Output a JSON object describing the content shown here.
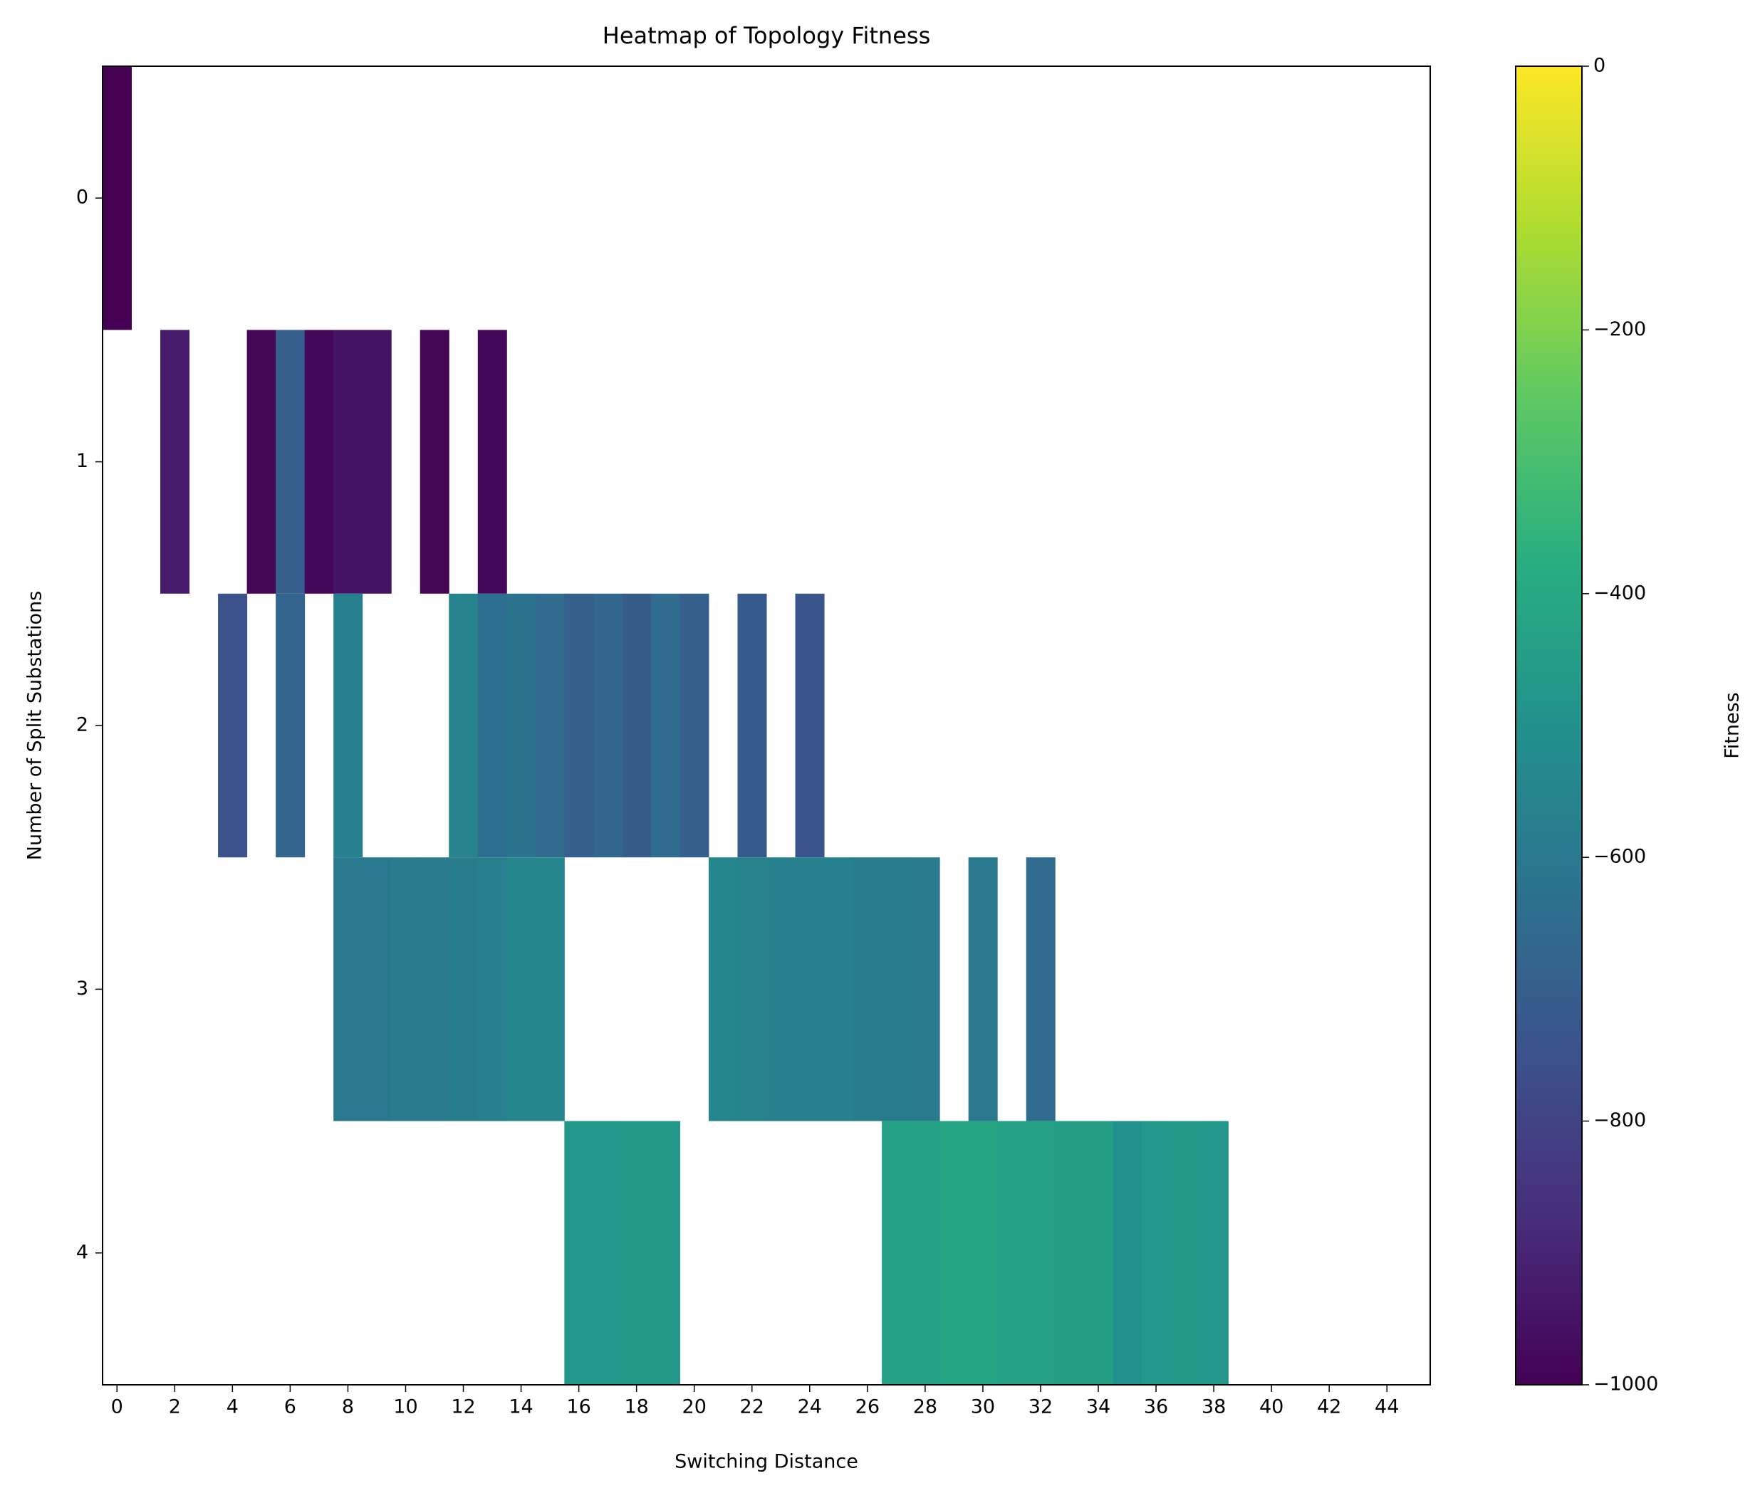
{
  "chart_data": {
    "type": "heatmap",
    "title": "Heatmap of Topology Fitness",
    "x_label": "Switching Distance",
    "y_label": "Number of Split Substations",
    "colorbar_label": "Fitness",
    "colormap": "viridis",
    "clim": [
      -1000,
      0
    ],
    "x": [
      0,
      1,
      2,
      3,
      4,
      5,
      6,
      7,
      8,
      9,
      10,
      11,
      12,
      13,
      14,
      15,
      16,
      17,
      18,
      19,
      20,
      21,
      22,
      23,
      24,
      25,
      26,
      27,
      28,
      29,
      30,
      31,
      32,
      33,
      34,
      35,
      36,
      37,
      38,
      39,
      40,
      41,
      42,
      43,
      44,
      45
    ],
    "y": [
      0,
      1,
      2,
      3,
      4
    ],
    "z": [
      [
        -1000,
        null,
        null,
        null,
        null,
        null,
        null,
        null,
        null,
        null,
        null,
        null,
        null,
        null,
        null,
        null,
        null,
        null,
        null,
        null,
        null,
        null,
        null,
        null,
        null,
        null,
        null,
        null,
        null,
        null,
        null,
        null,
        null,
        null,
        null,
        null,
        null,
        null,
        null,
        null,
        null,
        null,
        null,
        null,
        null,
        null
      ],
      [
        null,
        null,
        -930,
        null,
        null,
        -990,
        -700,
        -980,
        -950,
        -950,
        null,
        -990,
        null,
        -980,
        null,
        null,
        null,
        null,
        null,
        null,
        null,
        null,
        null,
        null,
        null,
        null,
        null,
        null,
        null,
        null,
        null,
        null,
        null,
        null,
        null,
        null,
        null,
        null,
        null,
        null,
        null,
        null,
        null,
        null,
        null,
        null
      ],
      [
        null,
        null,
        null,
        null,
        -750,
        null,
        -680,
        null,
        -570,
        null,
        null,
        null,
        -560,
        -640,
        -620,
        -650,
        -700,
        -670,
        -710,
        -650,
        -700,
        null,
        -720,
        null,
        -740,
        null,
        null,
        null,
        null,
        null,
        null,
        null,
        null,
        null,
        null,
        null,
        null,
        null,
        null,
        null,
        null,
        null,
        null,
        null,
        null,
        null
      ],
      [
        null,
        null,
        null,
        null,
        null,
        null,
        null,
        null,
        -600,
        -600,
        -590,
        -590,
        -580,
        -570,
        -540,
        -540,
        null,
        null,
        null,
        null,
        null,
        -550,
        -560,
        -570,
        -570,
        -570,
        -580,
        -580,
        -590,
        null,
        -600,
        null,
        -650,
        null,
        null,
        null,
        null,
        null,
        null,
        null,
        null,
        null,
        null,
        null,
        null,
        null
      ],
      [
        null,
        null,
        null,
        null,
        null,
        null,
        null,
        null,
        null,
        null,
        null,
        null,
        null,
        null,
        null,
        null,
        -480,
        -480,
        -470,
        -470,
        null,
        null,
        null,
        null,
        null,
        null,
        null,
        -430,
        -430,
        -420,
        -420,
        -430,
        -430,
        -440,
        -440,
        -500,
        -480,
        -470,
        -480,
        null,
        null,
        null,
        null,
        null,
        null,
        null
      ]
    ],
    "xlim": [
      -0.5,
      45.5
    ],
    "ylim": [
      4.5,
      -0.5
    ],
    "xticks": [
      0,
      2,
      4,
      6,
      8,
      10,
      12,
      14,
      16,
      18,
      20,
      22,
      24,
      26,
      28,
      30,
      32,
      34,
      36,
      38,
      40,
      42,
      44
    ],
    "yticks": [
      0,
      1,
      2,
      3,
      4
    ],
    "cticks": [
      {
        "value": 0,
        "label": "0"
      },
      {
        "value": -200,
        "label": "−200"
      },
      {
        "value": -400,
        "label": "−400"
      },
      {
        "value": -600,
        "label": "−600"
      },
      {
        "value": -800,
        "label": "−800"
      },
      {
        "value": -1000,
        "label": "−1000"
      }
    ]
  }
}
